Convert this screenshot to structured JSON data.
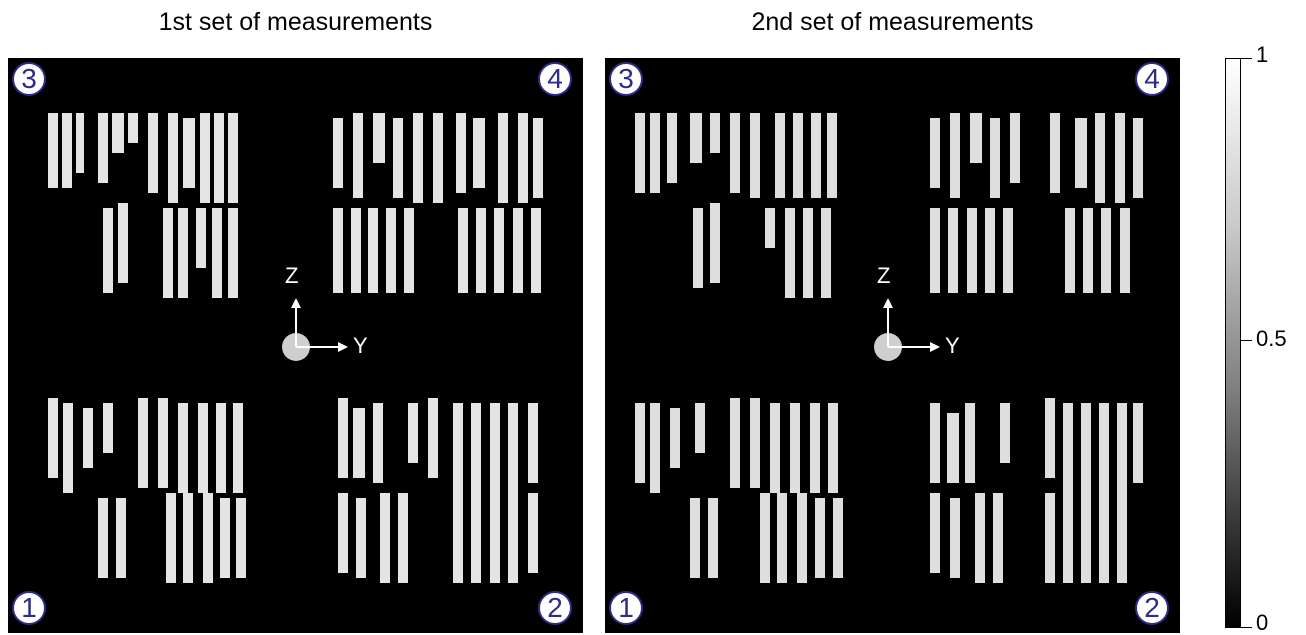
{
  "panels": [
    {
      "title": "1st set of measurements",
      "badges": {
        "top_left": "3",
        "top_right": "4",
        "bottom_left": "1",
        "bottom_right": "2"
      },
      "axis_z": "Z",
      "axis_y": "Y"
    },
    {
      "title": "2nd set of measurements",
      "badges": {
        "top_left": "3",
        "top_right": "4",
        "bottom_left": "1",
        "bottom_right": "2"
      },
      "axis_z": "Z",
      "axis_y": "Y"
    }
  ],
  "colorbar": {
    "ticks": [
      "1",
      "0.5",
      "0"
    ],
    "range": [
      0,
      1
    ],
    "colormap": "grayscale"
  }
}
